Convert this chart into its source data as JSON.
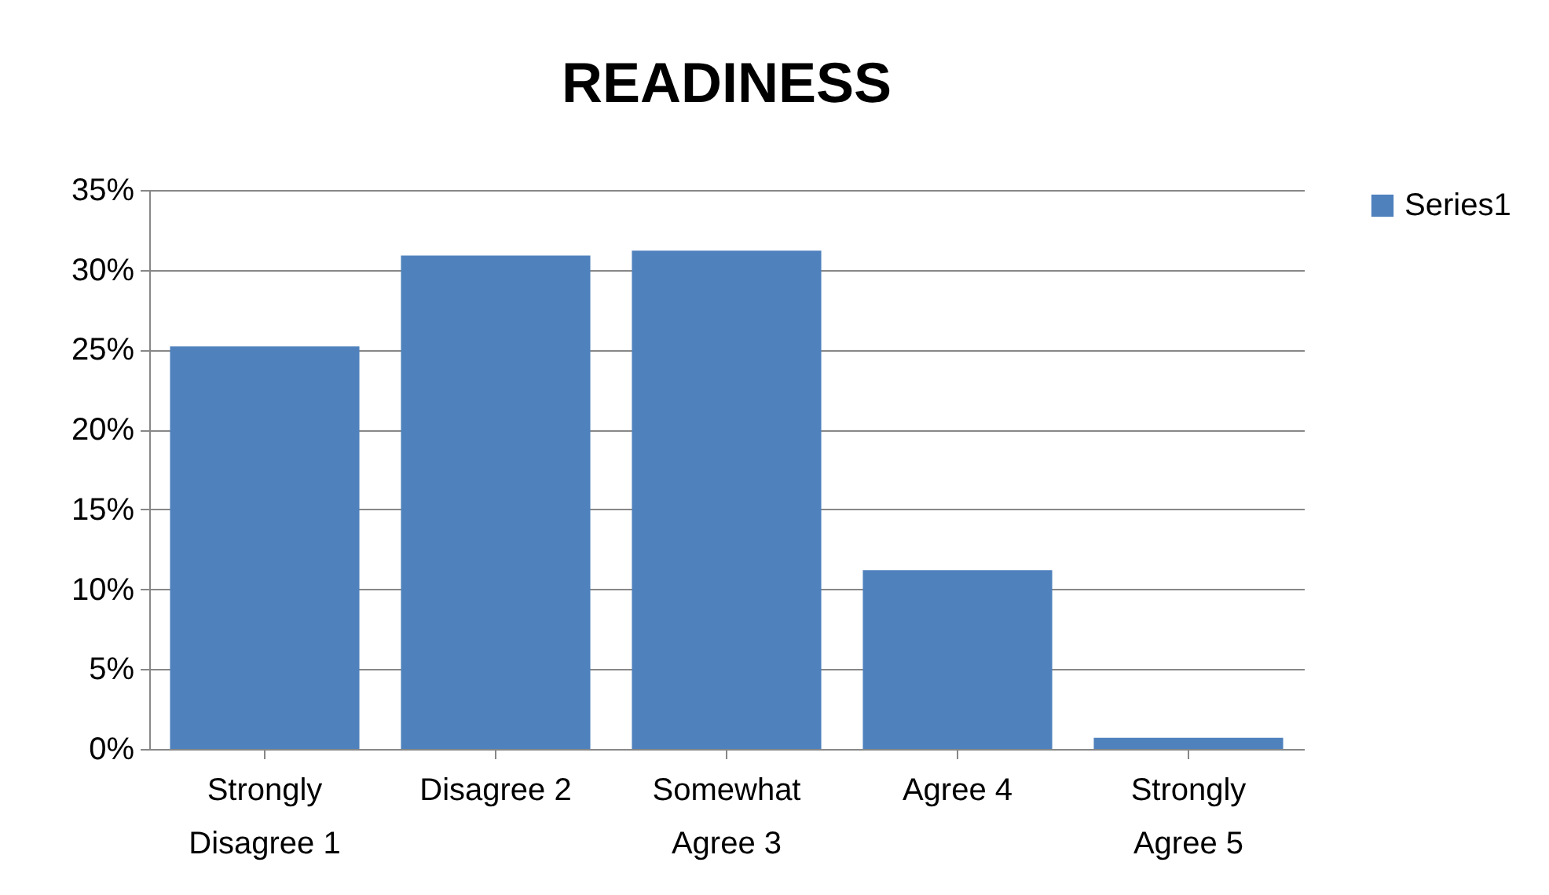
{
  "chart_data": {
    "type": "bar",
    "title": "READINESS",
    "categories": [
      "Strongly Disagree 1",
      "Disagree 2",
      "Somewhat Agree 3",
      "Agree 4",
      "Strongly Agree 5"
    ],
    "series": [
      {
        "name": "Series1",
        "color": "#4f81bd",
        "values": [
          25.2,
          30.9,
          31.2,
          11.2,
          0.7
        ]
      }
    ],
    "ylim": [
      0,
      35
    ],
    "yticks": [
      {
        "value": 0,
        "label": "0%"
      },
      {
        "value": 5,
        "label": "5%"
      },
      {
        "value": 10,
        "label": "10%"
      },
      {
        "value": 15,
        "label": "15%"
      },
      {
        "value": 20,
        "label": "20%"
      },
      {
        "value": 25,
        "label": "25%"
      },
      {
        "value": 30,
        "label": "30%"
      },
      {
        "value": 35,
        "label": "35%"
      }
    ],
    "grid": "y",
    "legend": "right"
  }
}
